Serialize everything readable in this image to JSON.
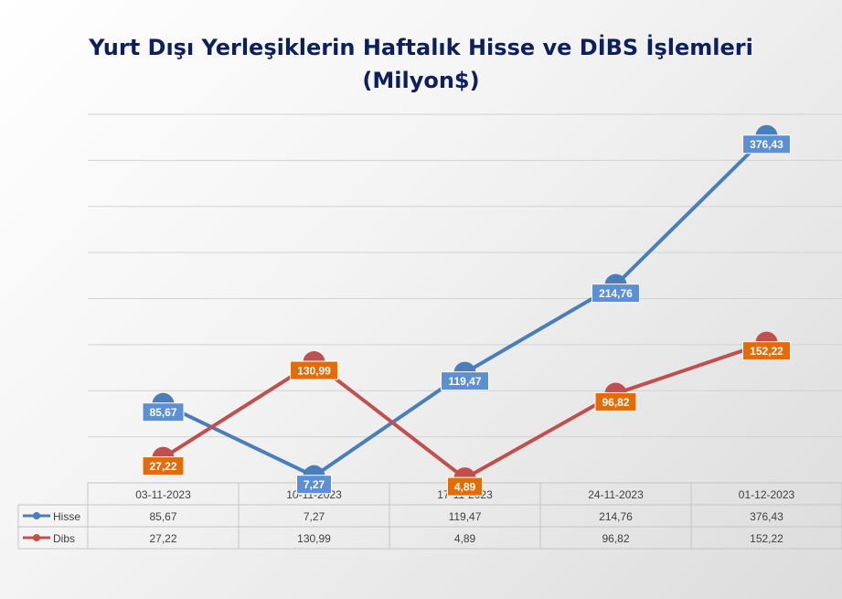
{
  "chart_data": {
    "type": "line",
    "title_line1": "Yurt Dışı Yerleşiklerin Haftalık Hisse ve DİBS İşlemleri",
    "title_line2": "(Milyon$)",
    "categories": [
      "03-11-2023",
      "10-11-2023",
      "17-11-2023",
      "24-11-2023",
      "01-12-2023"
    ],
    "series": [
      {
        "name": "Hisse",
        "values": [
          85.67,
          7.27,
          119.47,
          214.76,
          376.43
        ],
        "labels": [
          "85,67",
          "7,27",
          "119,47",
          "214,76",
          "376,43"
        ],
        "color": "#4a7ebb",
        "label_bg": "#5b8fd6"
      },
      {
        "name": "Dibs",
        "values": [
          27.22,
          130.99,
          4.89,
          96.82,
          152.22
        ],
        "labels": [
          "27,22",
          "130,99",
          "4,89",
          "96,82",
          "152,22"
        ],
        "color": "#c0504d",
        "label_bg": "#e36c09"
      }
    ],
    "ylim": [
      0,
      400
    ],
    "grid": true,
    "legend": "data-table"
  }
}
